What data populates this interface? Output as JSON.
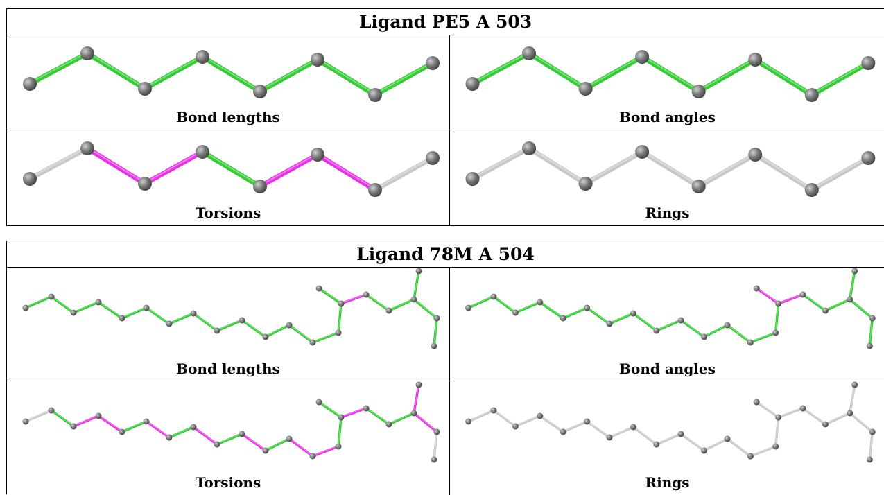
{
  "ligand1": {
    "title": "Ligand PE5 A 503",
    "cells": [
      {
        "caption": "Bond lengths",
        "bonds": [
          "green",
          "green",
          "green",
          "green",
          "green",
          "green",
          "green"
        ]
      },
      {
        "caption": "Bond angles",
        "bonds": [
          "green",
          "green",
          "green",
          "green",
          "green",
          "green",
          "green"
        ]
      },
      {
        "caption": "Torsions",
        "bonds": [
          "gray",
          "magenta",
          "magenta",
          "green",
          "magenta",
          "magenta",
          "gray"
        ]
      },
      {
        "caption": "Rings",
        "bonds": [
          "gray",
          "gray",
          "gray",
          "gray",
          "gray",
          "gray",
          "gray"
        ]
      }
    ]
  },
  "ligand2": {
    "title": "Ligand 78M A 504",
    "cells": [
      {
        "caption": "Bond lengths",
        "bonds": [
          "green",
          "green",
          "green",
          "green",
          "green",
          "green",
          "green",
          "green",
          "green",
          "green",
          "green",
          "green",
          "green",
          "green",
          "green",
          "magenta",
          "green",
          "green",
          "green",
          "green",
          "green",
          "green"
        ]
      },
      {
        "caption": "Bond angles",
        "bonds": [
          "green",
          "green",
          "green",
          "green",
          "green",
          "green",
          "green",
          "green",
          "green",
          "green",
          "green",
          "green",
          "green",
          "green",
          "magenta",
          "magenta",
          "green",
          "green",
          "green",
          "green",
          "green",
          "green"
        ]
      },
      {
        "caption": "Torsions",
        "bonds": [
          "gray",
          "green",
          "magenta",
          "magenta",
          "green",
          "magenta",
          "green",
          "magenta",
          "green",
          "magenta",
          "green",
          "magenta",
          "magenta",
          "green",
          "green",
          "magenta",
          "green",
          "green",
          "magenta",
          "magenta",
          "gray",
          "gray"
        ]
      },
      {
        "caption": "Rings",
        "bonds": [
          "gray",
          "gray",
          "gray",
          "gray",
          "gray",
          "gray",
          "gray",
          "gray",
          "gray",
          "gray",
          "gray",
          "gray",
          "gray",
          "gray",
          "gray",
          "gray",
          "gray",
          "gray",
          "gray",
          "gray",
          "gray",
          "gray"
        ]
      }
    ]
  },
  "colors": {
    "green": "#33cc33",
    "magenta": "#e633e6",
    "gray": "#c8c8c8",
    "atom": "#7a7a7a"
  }
}
